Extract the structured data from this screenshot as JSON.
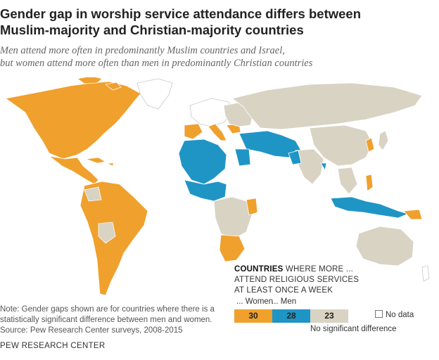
{
  "title": {
    "line1": "Gender gap in worship service attendance differs between",
    "line2": "Muslim-majority and Christian-majority countries"
  },
  "subtitle": {
    "line1": "Men attend more often in predominantly Muslim countries and Israel,",
    "line2": "but women attend more often than men in predominantly Christian countries"
  },
  "colors": {
    "women": "#F0A02D",
    "men": "#1F95C6",
    "no_difference": "#D8D3C3",
    "no_data": "#FFFFFF",
    "border": "#FFFFFF"
  },
  "legend": {
    "heading_bold": "COUNTRIES",
    "heading_rest1": " WHERE MORE ...",
    "heading_line2": "ATTEND RELIGIOUS SERVICES",
    "heading_line3": "AT LEAST ONCE A WEEK",
    "women_label": "... Women",
    "men_label": "... Men",
    "women_count": "30",
    "men_count": "28",
    "no_difference_count": "23",
    "no_data_label": "No data",
    "no_difference_label": "No significant difference"
  },
  "note": {
    "line1": "Note: Gender gaps shown are for countries where there is a",
    "line2": "statistically significant difference between men and women.",
    "line3": "Source: Pew Research Center surveys, 2008-2015"
  },
  "footer": "PEW RESEARCH CENTER"
}
